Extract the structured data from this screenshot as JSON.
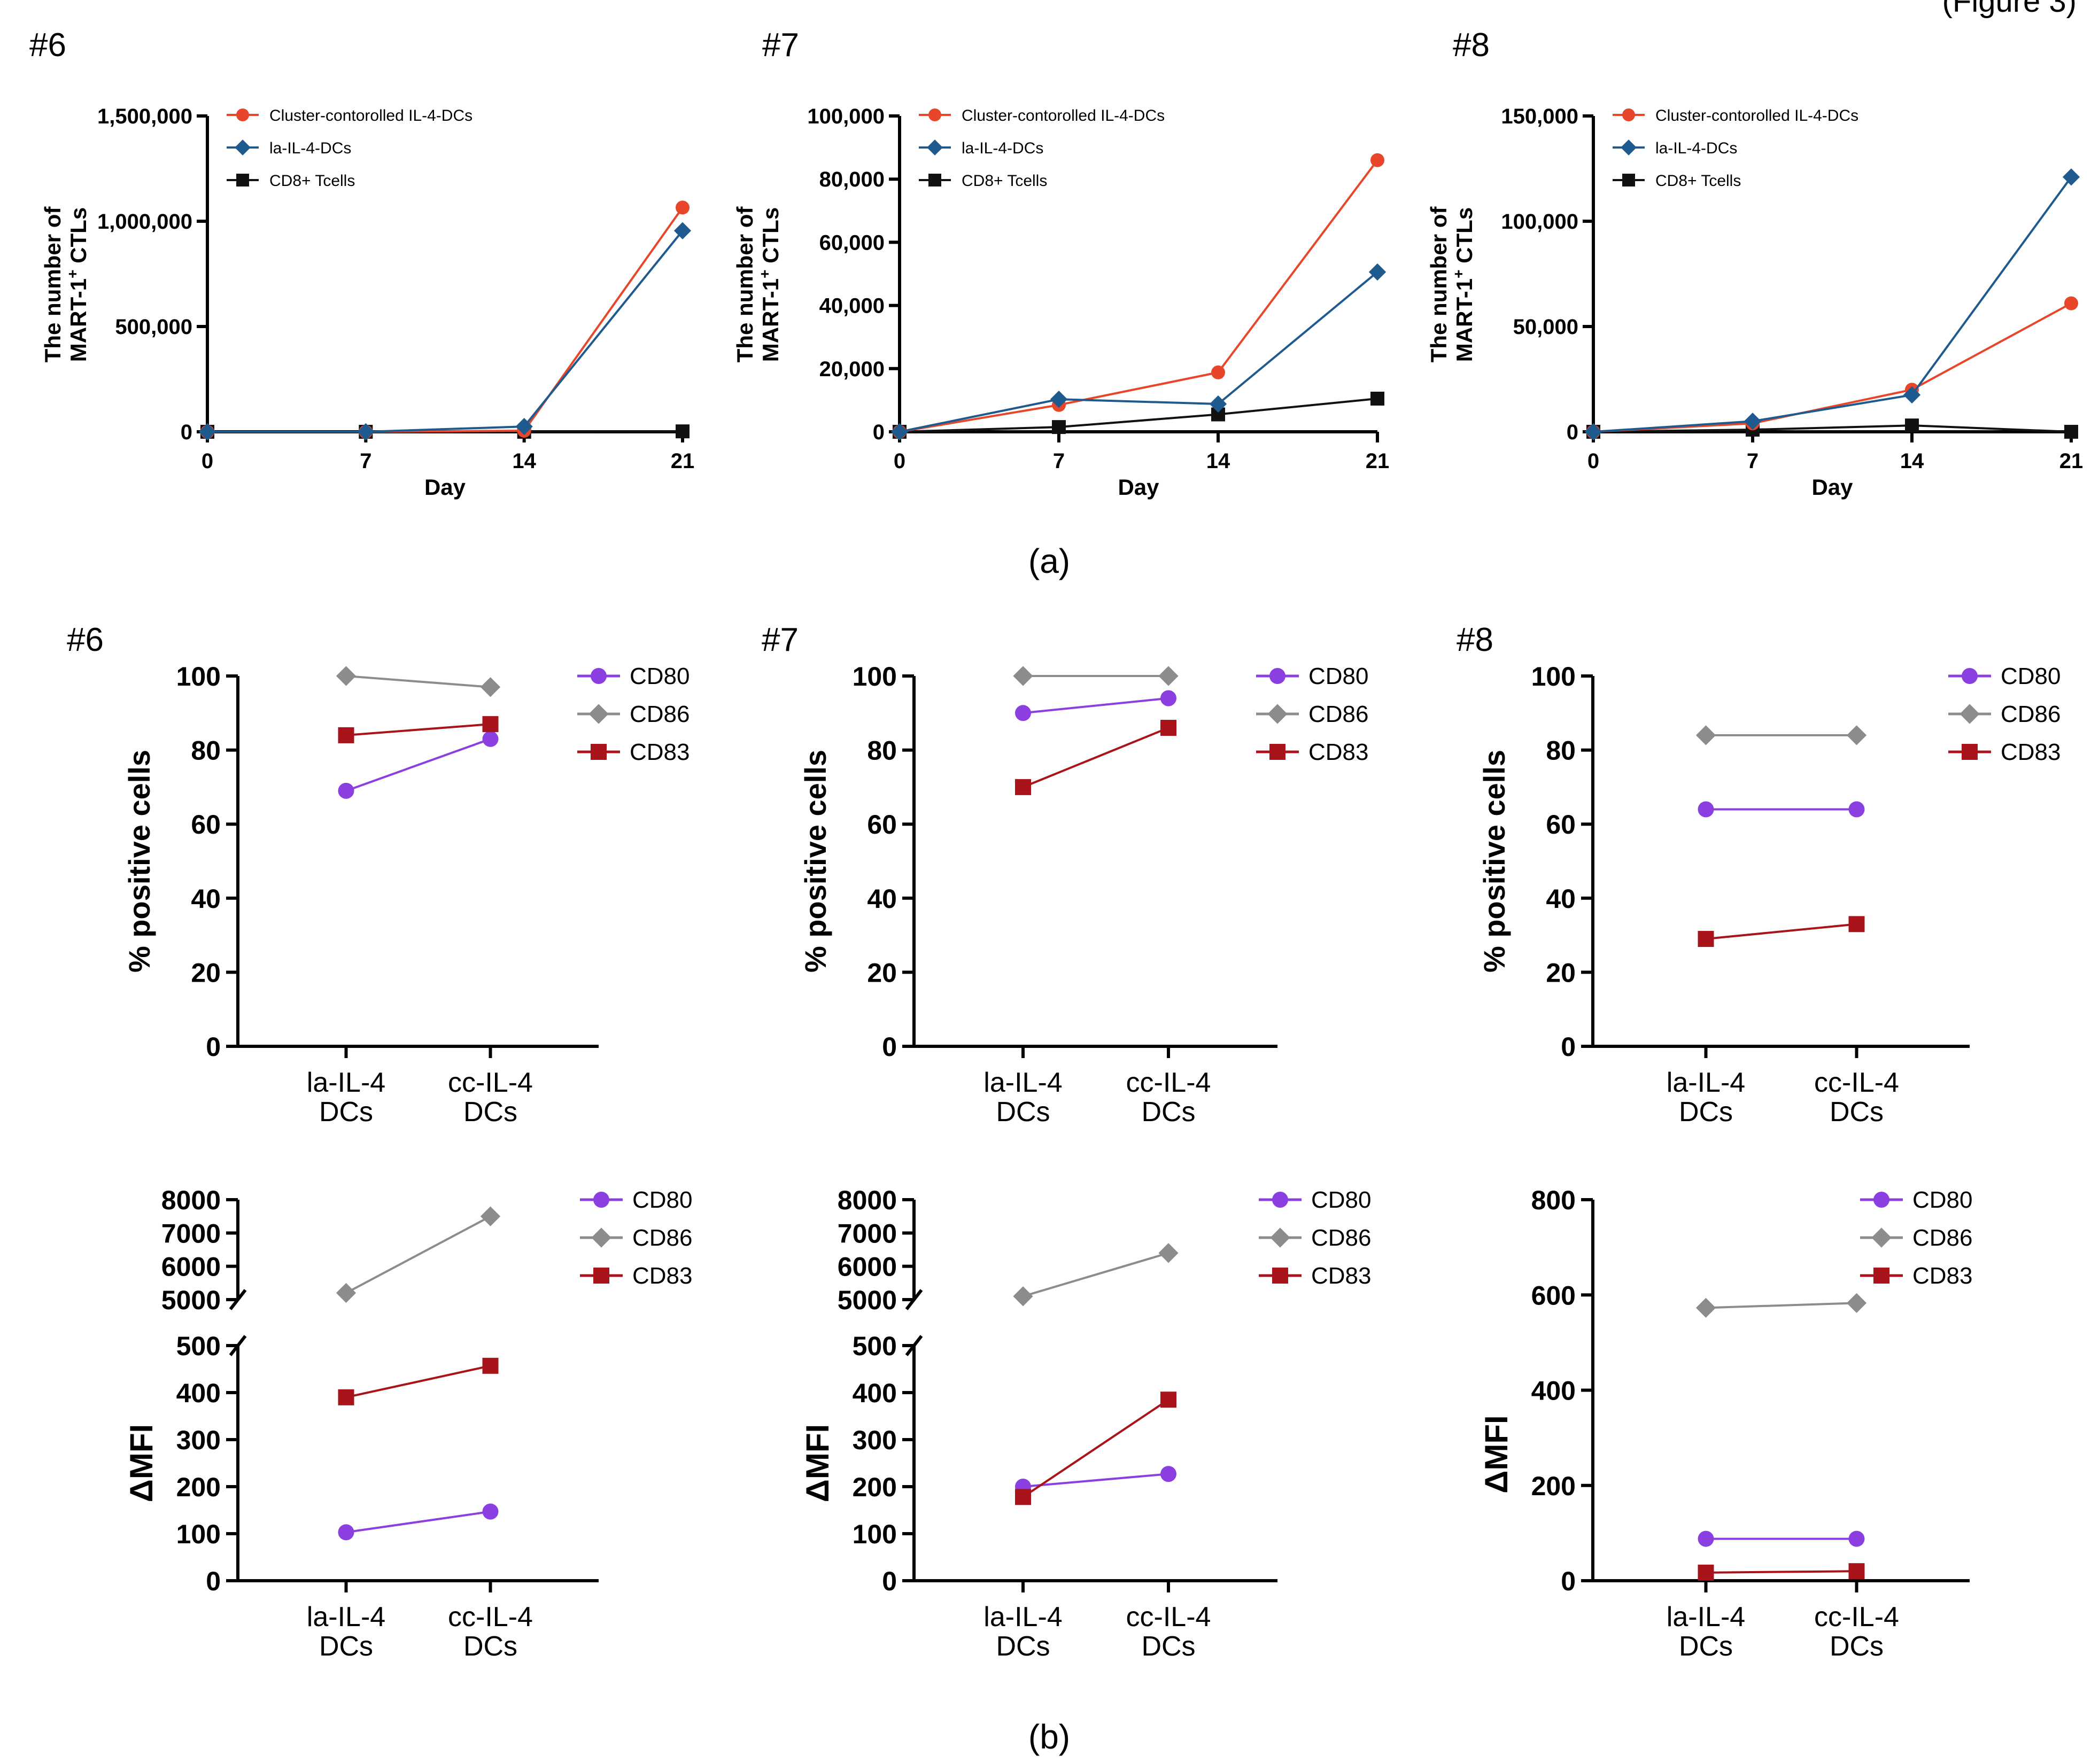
{
  "figure": {
    "header_fragment": "(Figure 3)",
    "panel_labels": [
      "(a)",
      "(b)"
    ]
  },
  "colors": {
    "red": "#e8462a",
    "blue": "#1f5a8e",
    "black": "#111111",
    "purple": "#8b3fe0",
    "gray": "#8c8c8c",
    "darkred": "#a8141a"
  },
  "chart_data": [
    {
      "panel": "a",
      "donor_label": "#6",
      "type": "line",
      "title": "#6",
      "xlabel": "Day",
      "ylabel": "The number of MART-1+ CTLs",
      "ylabel_line1": "The number of",
      "ylabel_line2_prefix": "MART-1",
      "ylabel_line2_suffix": " CTLs",
      "ylabel_sup": "+",
      "x": [
        0,
        7,
        14,
        21
      ],
      "xlim": [
        0,
        21
      ],
      "ylim": [
        0,
        1500000
      ],
      "yticks": [
        0,
        500000,
        1000000,
        1500000
      ],
      "ytick_labels": [
        "0",
        "500,000",
        "1,000,000",
        "1,500,000"
      ],
      "xticks": [
        0,
        7,
        14,
        21
      ],
      "xtick_labels": [
        "0",
        "7",
        "14",
        "21"
      ],
      "legend_position": "top-left",
      "series": [
        {
          "name": "Cluster-contorolled IL-4-DCs",
          "color": "red",
          "marker": "circle",
          "values": [
            0,
            0,
            5000,
            1065000
          ]
        },
        {
          "name": "la-IL-4-DCs",
          "color": "blue",
          "marker": "diamond",
          "values": [
            0,
            0,
            25000,
            955000
          ]
        },
        {
          "name": "CD8+ Tcells",
          "color": "black",
          "marker": "square",
          "values": [
            0,
            0,
            0,
            2000
          ]
        }
      ]
    },
    {
      "panel": "a",
      "donor_label": "#7",
      "type": "line",
      "title": "#7",
      "xlabel": "Day",
      "ylabel": "The number of MART-1+ CTLs",
      "ylabel_line1": "The number of",
      "ylabel_line2_prefix": "MART-1",
      "ylabel_line2_suffix": " CTLs",
      "ylabel_sup": "+",
      "x": [
        0,
        7,
        14,
        21
      ],
      "xlim": [
        0,
        21
      ],
      "ylim": [
        0,
        100000
      ],
      "yticks": [
        0,
        20000,
        40000,
        60000,
        80000,
        100000
      ],
      "ytick_labels": [
        "0",
        "20,000",
        "40,000",
        "60,000",
        "80,000",
        "100,000"
      ],
      "xticks": [
        0,
        7,
        14,
        21
      ],
      "xtick_labels": [
        "0",
        "7",
        "14",
        "21"
      ],
      "legend_position": "top-left",
      "series": [
        {
          "name": "Cluster-contorolled IL-4-DCs",
          "color": "red",
          "marker": "circle",
          "values": [
            0,
            8500,
            18800,
            86000
          ]
        },
        {
          "name": "la-IL-4-DCs",
          "color": "blue",
          "marker": "diamond",
          "values": [
            0,
            10300,
            8800,
            50600
          ]
        },
        {
          "name": "CD8+ Tcells",
          "color": "black",
          "marker": "square",
          "values": [
            0,
            1500,
            5500,
            10500
          ]
        }
      ]
    },
    {
      "panel": "a",
      "donor_label": "#8",
      "type": "line",
      "title": "#8",
      "xlabel": "Day",
      "ylabel": "The number of MART-1+ CTLs",
      "ylabel_line1": "The number of",
      "ylabel_line2_prefix": "MART-1",
      "ylabel_line2_suffix": " CTLs",
      "ylabel_sup": "+",
      "x": [
        0,
        7,
        14,
        21
      ],
      "xlim": [
        0,
        21
      ],
      "ylim": [
        0,
        150000
      ],
      "yticks": [
        0,
        50000,
        100000,
        150000
      ],
      "ytick_labels": [
        "0",
        "50,000",
        "100,000",
        "150,000"
      ],
      "xticks": [
        0,
        7,
        14,
        21
      ],
      "xtick_labels": [
        "0",
        "7",
        "14",
        "21"
      ],
      "legend_position": "top-left",
      "series": [
        {
          "name": "Cluster-contorolled IL-4-DCs",
          "color": "red",
          "marker": "circle",
          "values": [
            0,
            4000,
            20000,
            61000
          ]
        },
        {
          "name": "la-IL-4-DCs",
          "color": "blue",
          "marker": "diamond",
          "values": [
            0,
            5000,
            17500,
            121000
          ]
        },
        {
          "name": "CD8+ Tcells",
          "color": "black",
          "marker": "square",
          "values": [
            0,
            1000,
            3000,
            0
          ]
        }
      ]
    },
    {
      "panel": "b",
      "donor_label": "#6",
      "type": "line",
      "title": "#6",
      "xlabel": "",
      "ylabel": "% positive cells",
      "categories": [
        "la-IL-4 DCs",
        "cc-IL-4 DCs"
      ],
      "category_lines": [
        [
          "la-IL-4",
          "DCs"
        ],
        [
          "cc-IL-4",
          "DCs"
        ]
      ],
      "ylim": [
        0,
        100
      ],
      "yticks": [
        0,
        20,
        40,
        60,
        80,
        100
      ],
      "ytick_labels": [
        "0",
        "20",
        "40",
        "60",
        "80",
        "100"
      ],
      "legend_position": "top-right",
      "series": [
        {
          "name": "CD80",
          "color": "purple",
          "marker": "circle",
          "values": [
            69,
            83
          ]
        },
        {
          "name": "CD86",
          "color": "gray",
          "marker": "diamond",
          "values": [
            100,
            97
          ]
        },
        {
          "name": "CD83",
          "color": "darkred",
          "marker": "square",
          "values": [
            84,
            87
          ]
        }
      ]
    },
    {
      "panel": "b",
      "donor_label": "#7",
      "type": "line",
      "title": "#7",
      "xlabel": "",
      "ylabel": "% positive cells",
      "categories": [
        "la-IL-4 DCs",
        "cc-IL-4 DCs"
      ],
      "category_lines": [
        [
          "la-IL-4",
          "DCs"
        ],
        [
          "cc-IL-4",
          "DCs"
        ]
      ],
      "ylim": [
        0,
        100
      ],
      "yticks": [
        0,
        20,
        40,
        60,
        80,
        100
      ],
      "ytick_labels": [
        "0",
        "20",
        "40",
        "60",
        "80",
        "100"
      ],
      "legend_position": "top-right",
      "series": [
        {
          "name": "CD80",
          "color": "purple",
          "marker": "circle",
          "values": [
            90,
            94
          ]
        },
        {
          "name": "CD86",
          "color": "gray",
          "marker": "diamond",
          "values": [
            100,
            100
          ]
        },
        {
          "name": "CD83",
          "color": "darkred",
          "marker": "square",
          "values": [
            70,
            86
          ]
        }
      ]
    },
    {
      "panel": "b",
      "donor_label": "#8",
      "type": "line",
      "title": "#8",
      "xlabel": "",
      "ylabel": "% positive cells",
      "categories": [
        "la-IL-4 DCs",
        "cc-IL-4 DCs"
      ],
      "category_lines": [
        [
          "la-IL-4",
          "DCs"
        ],
        [
          "cc-IL-4",
          "DCs"
        ]
      ],
      "ylim": [
        0,
        100
      ],
      "yticks": [
        0,
        20,
        40,
        60,
        80,
        100
      ],
      "ytick_labels": [
        "0",
        "20",
        "40",
        "60",
        "80",
        "100"
      ],
      "legend_position": "top-right",
      "series": [
        {
          "name": "CD80",
          "color": "purple",
          "marker": "circle",
          "values": [
            64,
            64
          ]
        },
        {
          "name": "CD86",
          "color": "gray",
          "marker": "diamond",
          "values": [
            84,
            84
          ]
        },
        {
          "name": "CD83",
          "color": "darkred",
          "marker": "square",
          "values": [
            29,
            33
          ]
        }
      ]
    },
    {
      "panel": "b",
      "donor_label": "#6",
      "type": "line",
      "title": "",
      "xlabel": "",
      "ylabel": "ΔMFI",
      "categories": [
        "la-IL-4 DCs",
        "cc-IL-4 DCs"
      ],
      "category_lines": [
        [
          "la-IL-4",
          "DCs"
        ],
        [
          "cc-IL-4",
          "DCs"
        ]
      ],
      "broken_axis": true,
      "ylim_lower": [
        0,
        500
      ],
      "ylim_upper": [
        5000,
        8000
      ],
      "yticks_lower": [
        0,
        100,
        200,
        300,
        400,
        500
      ],
      "ytick_labels_lower": [
        "0",
        "100",
        "200",
        "300",
        "400",
        "500"
      ],
      "yticks_upper": [
        5000,
        6000,
        7000,
        8000
      ],
      "ytick_labels_upper": [
        "5000",
        "6000",
        "7000",
        "8000"
      ],
      "legend_position": "top-right",
      "series": [
        {
          "name": "CD80",
          "color": "purple",
          "marker": "circle",
          "values": [
            103,
            147
          ]
        },
        {
          "name": "CD86",
          "color": "gray",
          "marker": "diamond",
          "values": [
            5200,
            7500
          ]
        },
        {
          "name": "CD83",
          "color": "darkred",
          "marker": "square",
          "values": [
            390,
            457
          ]
        }
      ]
    },
    {
      "panel": "b",
      "donor_label": "#7",
      "type": "line",
      "title": "",
      "xlabel": "",
      "ylabel": "ΔMFI",
      "categories": [
        "la-IL-4 DCs",
        "cc-IL-4 DCs"
      ],
      "category_lines": [
        [
          "la-IL-4",
          "DCs"
        ],
        [
          "cc-IL-4",
          "DCs"
        ]
      ],
      "broken_axis": true,
      "ylim_lower": [
        0,
        500
      ],
      "ylim_upper": [
        5000,
        8000
      ],
      "yticks_lower": [
        0,
        100,
        200,
        300,
        400,
        500
      ],
      "ytick_labels_lower": [
        "0",
        "100",
        "200",
        "300",
        "400",
        "500"
      ],
      "yticks_upper": [
        5000,
        6000,
        7000,
        8000
      ],
      "ytick_labels_upper": [
        "5000",
        "6000",
        "7000",
        "8000"
      ],
      "legend_position": "top-right",
      "series": [
        {
          "name": "CD80",
          "color": "purple",
          "marker": "circle",
          "values": [
            200,
            227
          ]
        },
        {
          "name": "CD86",
          "color": "gray",
          "marker": "diamond",
          "values": [
            5100,
            6400
          ]
        },
        {
          "name": "CD83",
          "color": "darkred",
          "marker": "square",
          "values": [
            178,
            385
          ]
        }
      ]
    },
    {
      "panel": "b",
      "donor_label": "#8",
      "type": "line",
      "title": "",
      "xlabel": "",
      "ylabel": "ΔMFI",
      "categories": [
        "la-IL-4 DCs",
        "cc-IL-4 DCs"
      ],
      "category_lines": [
        [
          "la-IL-4",
          "DCs"
        ],
        [
          "cc-IL-4",
          "DCs"
        ]
      ],
      "ylim": [
        0,
        800
      ],
      "yticks": [
        0,
        200,
        400,
        600,
        800
      ],
      "ytick_labels": [
        "0",
        "200",
        "400",
        "600",
        "800"
      ],
      "legend_position": "top-right",
      "series": [
        {
          "name": "CD80",
          "color": "purple",
          "marker": "circle",
          "values": [
            88,
            88
          ]
        },
        {
          "name": "CD86",
          "color": "gray",
          "marker": "diamond",
          "values": [
            573,
            583
          ]
        },
        {
          "name": "CD83",
          "color": "darkred",
          "marker": "square",
          "values": [
            17,
            20
          ]
        }
      ]
    }
  ]
}
